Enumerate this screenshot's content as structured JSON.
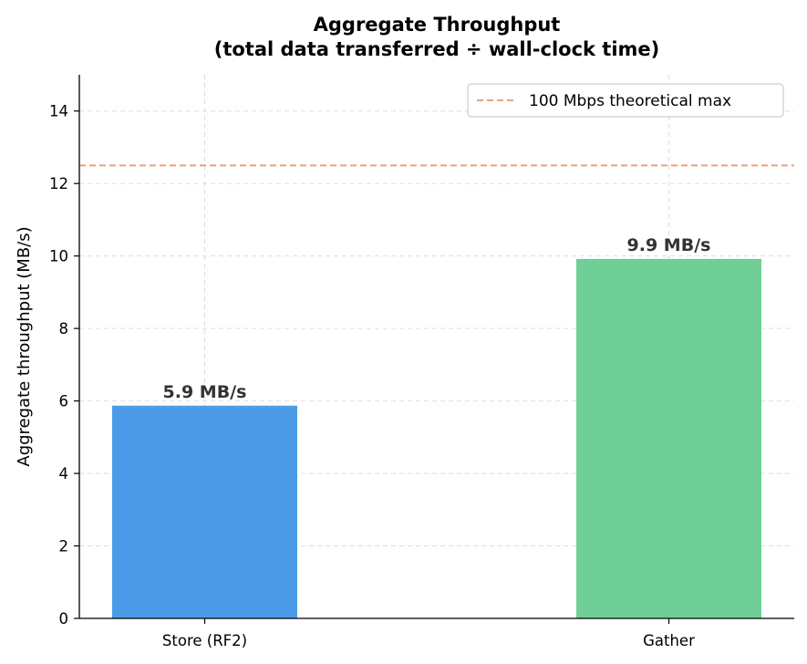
{
  "chart_data": {
    "type": "bar",
    "title": "Aggregate Throughput",
    "subtitle": "(total data transferred ÷ wall-clock time)",
    "xlabel": "",
    "ylabel": "Aggregate throughput (MB/s)",
    "categories": [
      "Store (RF2)",
      "Gather"
    ],
    "values": [
      5.87,
      9.92
    ],
    "data_labels": [
      "5.9 MB/s",
      "9.9 MB/s"
    ],
    "bar_colors": [
      "#4c9be8",
      "#70cf96"
    ],
    "ylim": [
      0,
      15
    ],
    "yticks": [
      0,
      2,
      4,
      6,
      8,
      10,
      12,
      14
    ],
    "grid": true,
    "reference_line": {
      "name": "100 Mbps theoretical max",
      "value": 12.5,
      "color": "#e8a27a",
      "style": "dashed"
    },
    "legend": {
      "placement": "top-right",
      "entries": [
        "100 Mbps theoretical max"
      ]
    }
  }
}
